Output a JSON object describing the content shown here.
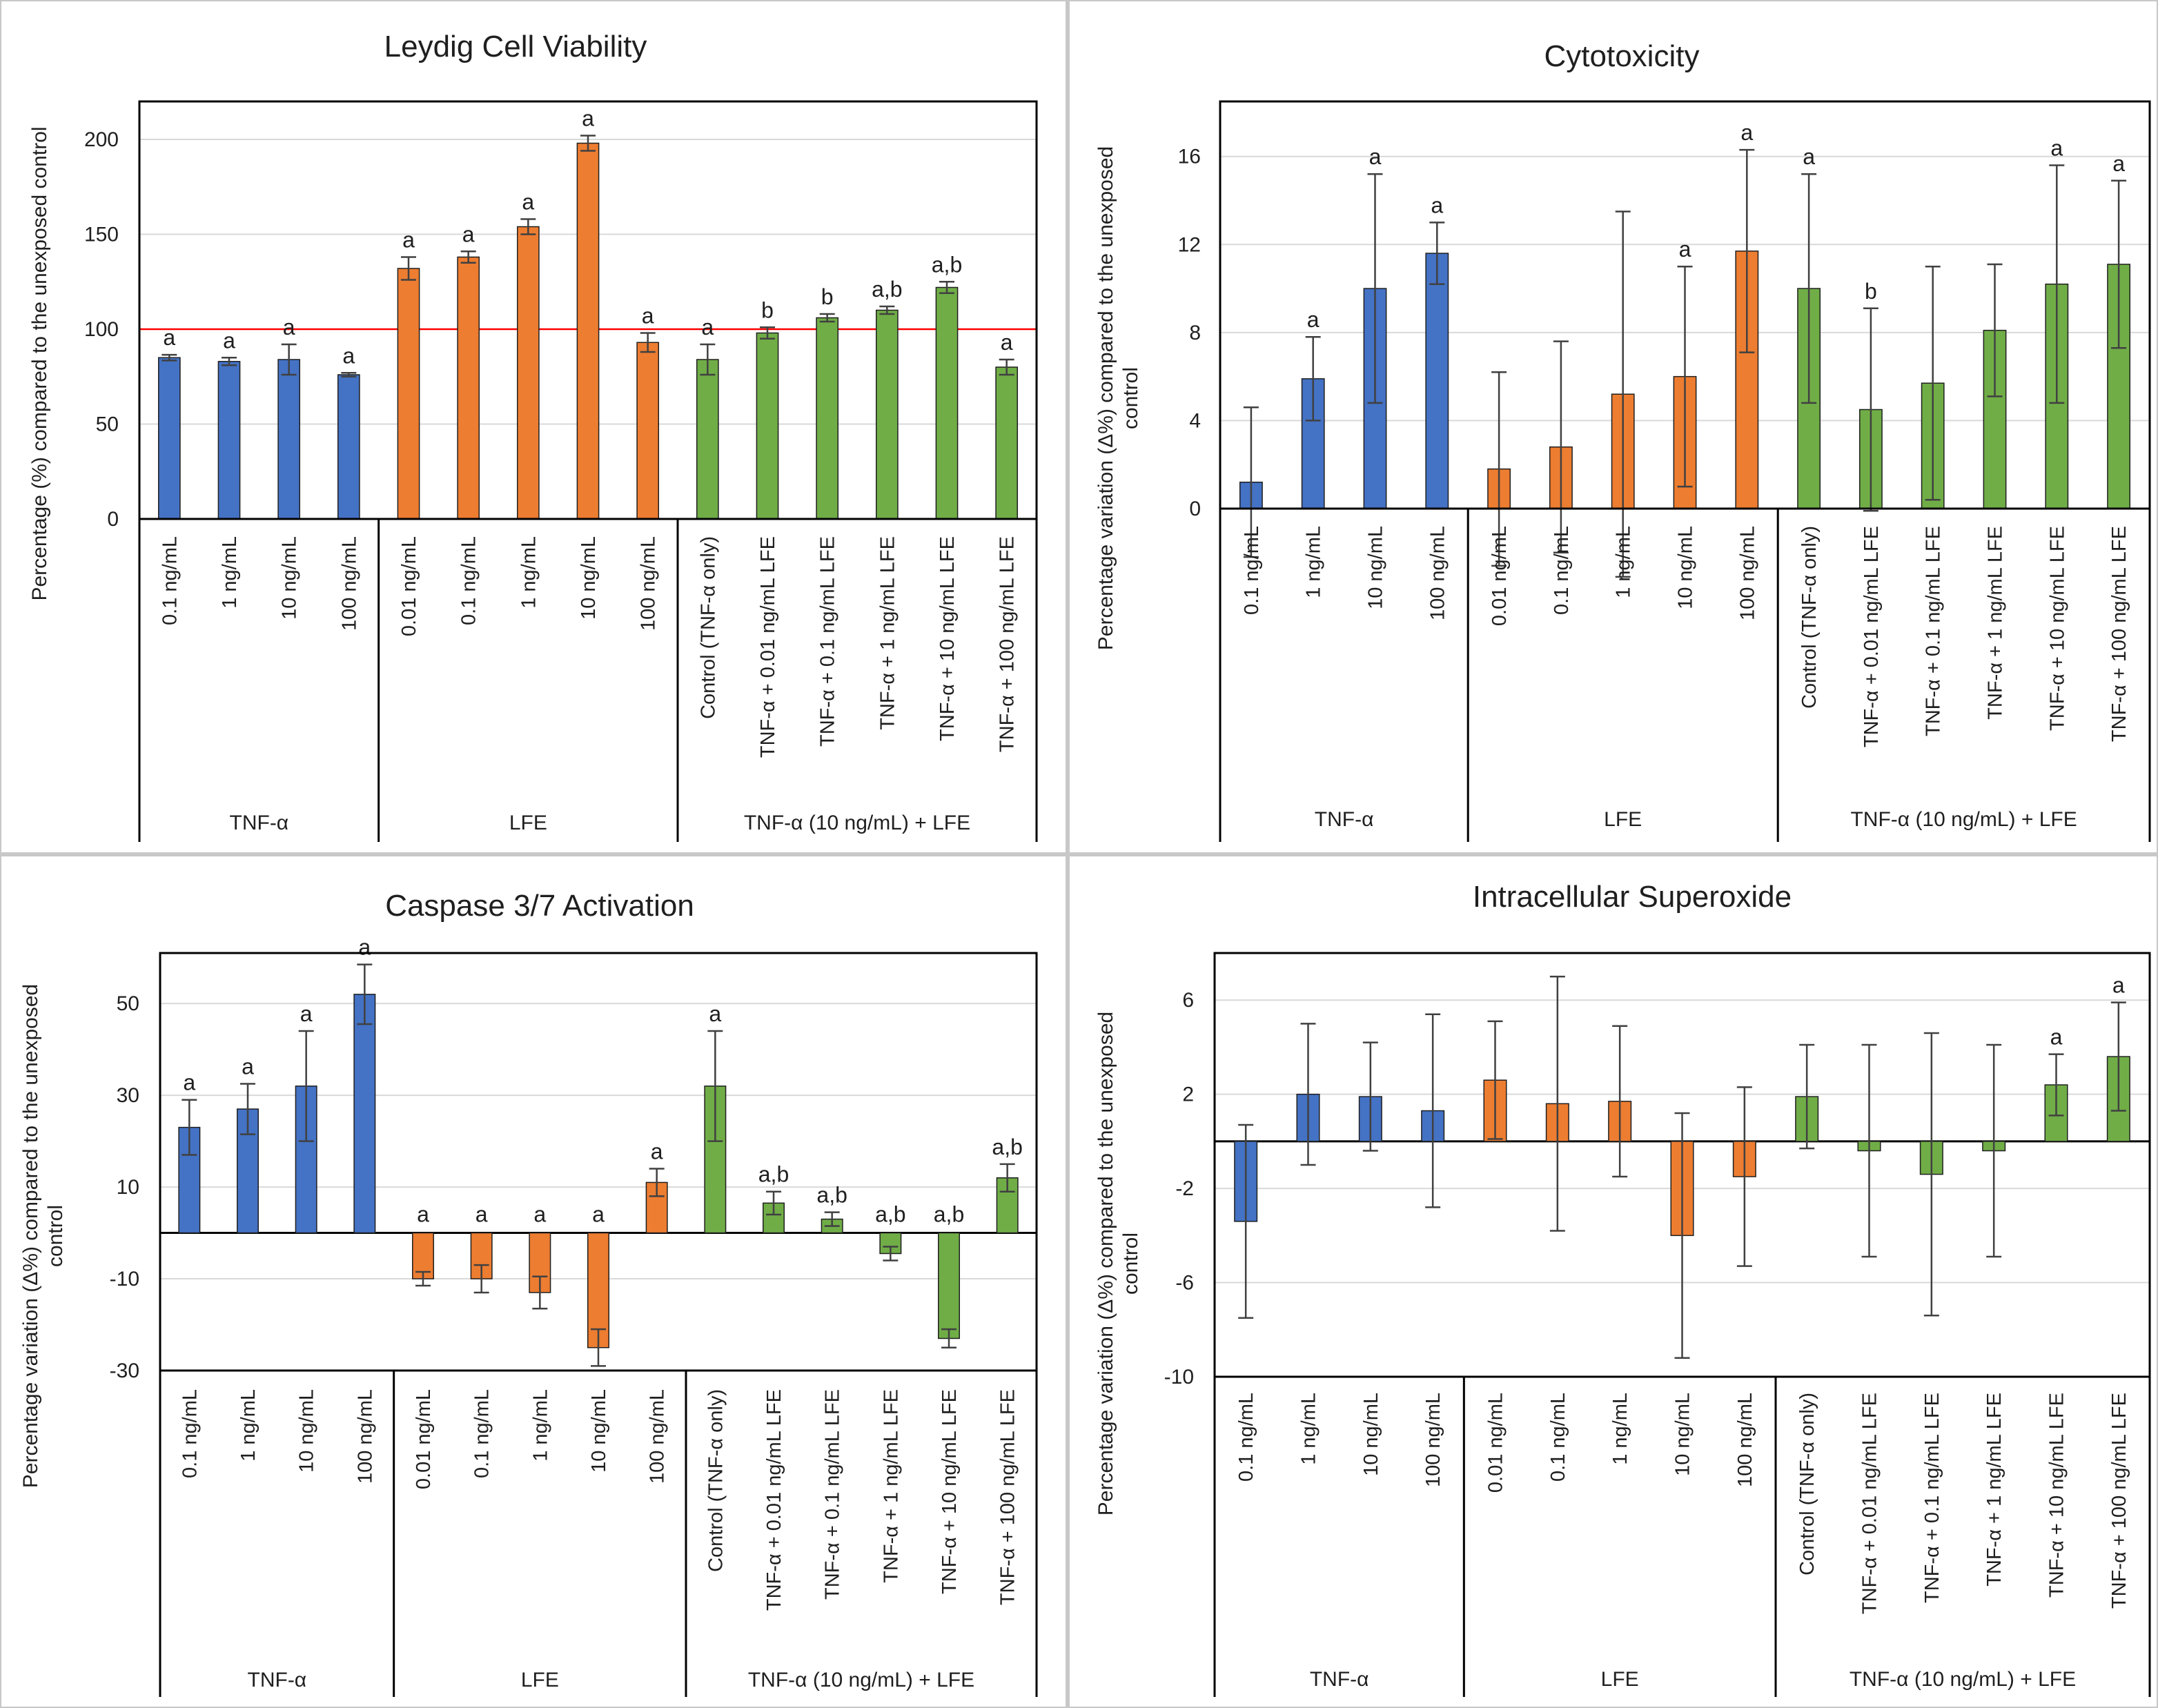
{
  "colors": {
    "tnf": "#4472C4",
    "lfe": "#ED7D31",
    "combo": "#70AD47",
    "reference_line": "#FF0000",
    "axis": "#000000",
    "grid": "#D9D9D9",
    "error_bar": "#404040"
  },
  "groups": [
    "TNF-α",
    "LFE",
    "TNF-α (10 ng/mL) + LFE"
  ],
  "chart_data": [
    {
      "type": "bar",
      "title": "Leydig Cell Viability",
      "ylabel": "Percentage (%) compared to the unexposed control",
      "ylim": [
        0,
        220
      ],
      "yticks": [
        0,
        50,
        100,
        150,
        200
      ],
      "reference_line": 100,
      "grid": true,
      "categories": [
        "0.1 ng/mL",
        "1 ng/mL",
        "10 ng/mL",
        "100 ng/mL",
        "0.01 ng/mL",
        "0.1 ng/mL",
        "1 ng/mL",
        "10 ng/mL",
        "100 ng/mL",
        "Control (TNF-α only)",
        "TNF-α + 0.01 ng/mL LFE",
        "TNF-α + 0.1 ng/mL LFE",
        "TNF-α + 1 ng/mL LFE",
        "TNF-α + 10 ng/mL LFE",
        "TNF-α + 100 ng/mL LFE"
      ],
      "category_group": [
        0,
        0,
        0,
        0,
        1,
        1,
        1,
        1,
        1,
        2,
        2,
        2,
        2,
        2,
        2
      ],
      "values": [
        85,
        83,
        84,
        76,
        132,
        138,
        154,
        198,
        93,
        84,
        98,
        106,
        110,
        122,
        80
      ],
      "errors": [
        1.5,
        2,
        8,
        1,
        6,
        3,
        4,
        4,
        5,
        8,
        3,
        2,
        2,
        3,
        4
      ],
      "labels": [
        "a",
        "a",
        "a",
        "a",
        "a",
        "a",
        "a",
        "a",
        "a",
        "a",
        "b",
        "b",
        "a,b",
        "a,b",
        "a"
      ]
    },
    {
      "type": "bar",
      "title": "Cytotoxicity",
      "ylabel": "Percentage variation (Δ%) compared to the unexposed control",
      "ylim": [
        0,
        18.5
      ],
      "yticks": [
        0,
        4,
        8,
        12,
        16
      ],
      "grid": true,
      "categories": [
        "0.1 ng/mL",
        "1 ng/mL",
        "10 ng/mL",
        "100 ng/mL",
        "0.01 ng/mL",
        "0.1 ng/mL",
        "1 ng/mL",
        "10 ng/mL",
        "100 ng/mL",
        "Control (TNF-α only)",
        "TNF-α + 0.01 ng/mL LFE",
        "TNF-α + 0.1 ng/mL LFE",
        "TNF-α + 1 ng/mL LFE",
        "TNF-α + 10 ng/mL LFE",
        "TNF-α + 100 ng/mL LFE"
      ],
      "category_group": [
        0,
        0,
        0,
        0,
        1,
        1,
        1,
        1,
        1,
        2,
        2,
        2,
        2,
        2,
        2
      ],
      "values": [
        1.2,
        5.9,
        10.0,
        11.6,
        1.8,
        2.8,
        5.2,
        6.0,
        11.7,
        10.0,
        4.5,
        5.7,
        8.1,
        10.2,
        11.1
      ],
      "errors": [
        3.4,
        1.9,
        5.2,
        1.4,
        4.4,
        4.8,
        8.3,
        5.0,
        4.6,
        5.2,
        4.6,
        5.3,
        3.0,
        5.4,
        3.8
      ],
      "labels": [
        "",
        "a",
        "a",
        "a",
        "",
        "",
        "",
        "a",
        "a",
        "a",
        "b",
        "",
        "",
        "a",
        "a"
      ]
    },
    {
      "type": "bar",
      "title": "Caspase 3/7 Activation",
      "ylabel": "Percentage variation (Δ%) compared to the unexposed control",
      "ylim": [
        -30,
        61
      ],
      "yticks": [
        -30,
        -10,
        10,
        30,
        50
      ],
      "grid": true,
      "categories": [
        "0.1 ng/mL",
        "1 ng/mL",
        "10 ng/mL",
        "100 ng/mL",
        "0.01 ng/mL",
        "0.1 ng/mL",
        "1 ng/mL",
        "10 ng/mL",
        "100 ng/mL",
        "Control (TNF-α only)",
        "TNF-α + 0.01 ng/mL LFE",
        "TNF-α + 0.1 ng/mL LFE",
        "TNF-α + 1 ng/mL LFE",
        "TNF-α + 10 ng/mL LFE",
        "TNF-α + 100 ng/mL LFE"
      ],
      "category_group": [
        0,
        0,
        0,
        0,
        1,
        1,
        1,
        1,
        1,
        2,
        2,
        2,
        2,
        2,
        2
      ],
      "values": [
        23,
        27,
        32,
        52,
        -10,
        -10,
        -13,
        -25,
        11,
        32,
        6.5,
        3,
        -4.5,
        -23,
        12
      ],
      "errors": [
        6,
        5.5,
        12,
        6.5,
        1.5,
        3,
        3.5,
        4,
        3,
        12,
        2.5,
        1.5,
        1.5,
        2,
        3
      ],
      "labels": [
        "a",
        "a",
        "a",
        "a",
        "a",
        "a",
        "a",
        "a",
        "a",
        "a",
        "a,b",
        "a,b",
        "a,b",
        "a,b",
        "a,b"
      ]
    },
    {
      "type": "bar",
      "title": "Intracellular Superoxide",
      "ylabel": "Percentage variation (Δ%) compared to the unexposed control",
      "ylim": [
        -10,
        8
      ],
      "yticks": [
        -10,
        -6,
        -2,
        2,
        6
      ],
      "grid": true,
      "categories": [
        "0.1 ng/mL",
        "1 ng/mL",
        "10 ng/mL",
        "100 ng/mL",
        "0.01 ng/mL",
        "0.1 ng/mL",
        "1 ng/mL",
        "10 ng/mL",
        "100 ng/mL",
        "Control (TNF-α only)",
        "TNF-α + 0.01 ng/mL LFE",
        "TNF-α + 0.1 ng/mL LFE",
        "TNF-α + 1 ng/mL LFE",
        "TNF-α + 10 ng/mL LFE",
        "TNF-α + 100 ng/mL LFE"
      ],
      "category_group": [
        0,
        0,
        0,
        0,
        1,
        1,
        1,
        1,
        1,
        2,
        2,
        2,
        2,
        2,
        2
      ],
      "values": [
        -3.4,
        2.0,
        1.9,
        1.3,
        2.6,
        1.6,
        1.7,
        -4.0,
        -1.5,
        1.9,
        -0.4,
        -1.4,
        -0.4,
        2.4,
        3.6
      ],
      "errors": [
        4.1,
        3.0,
        2.3,
        4.1,
        2.5,
        5.4,
        3.2,
        5.2,
        3.8,
        2.2,
        4.5,
        6.0,
        4.5,
        1.3,
        2.3
      ],
      "labels": [
        "",
        "",
        "",
        "",
        "",
        "",
        "",
        "",
        "",
        "",
        "",
        "",
        "",
        "a",
        "a"
      ]
    }
  ]
}
